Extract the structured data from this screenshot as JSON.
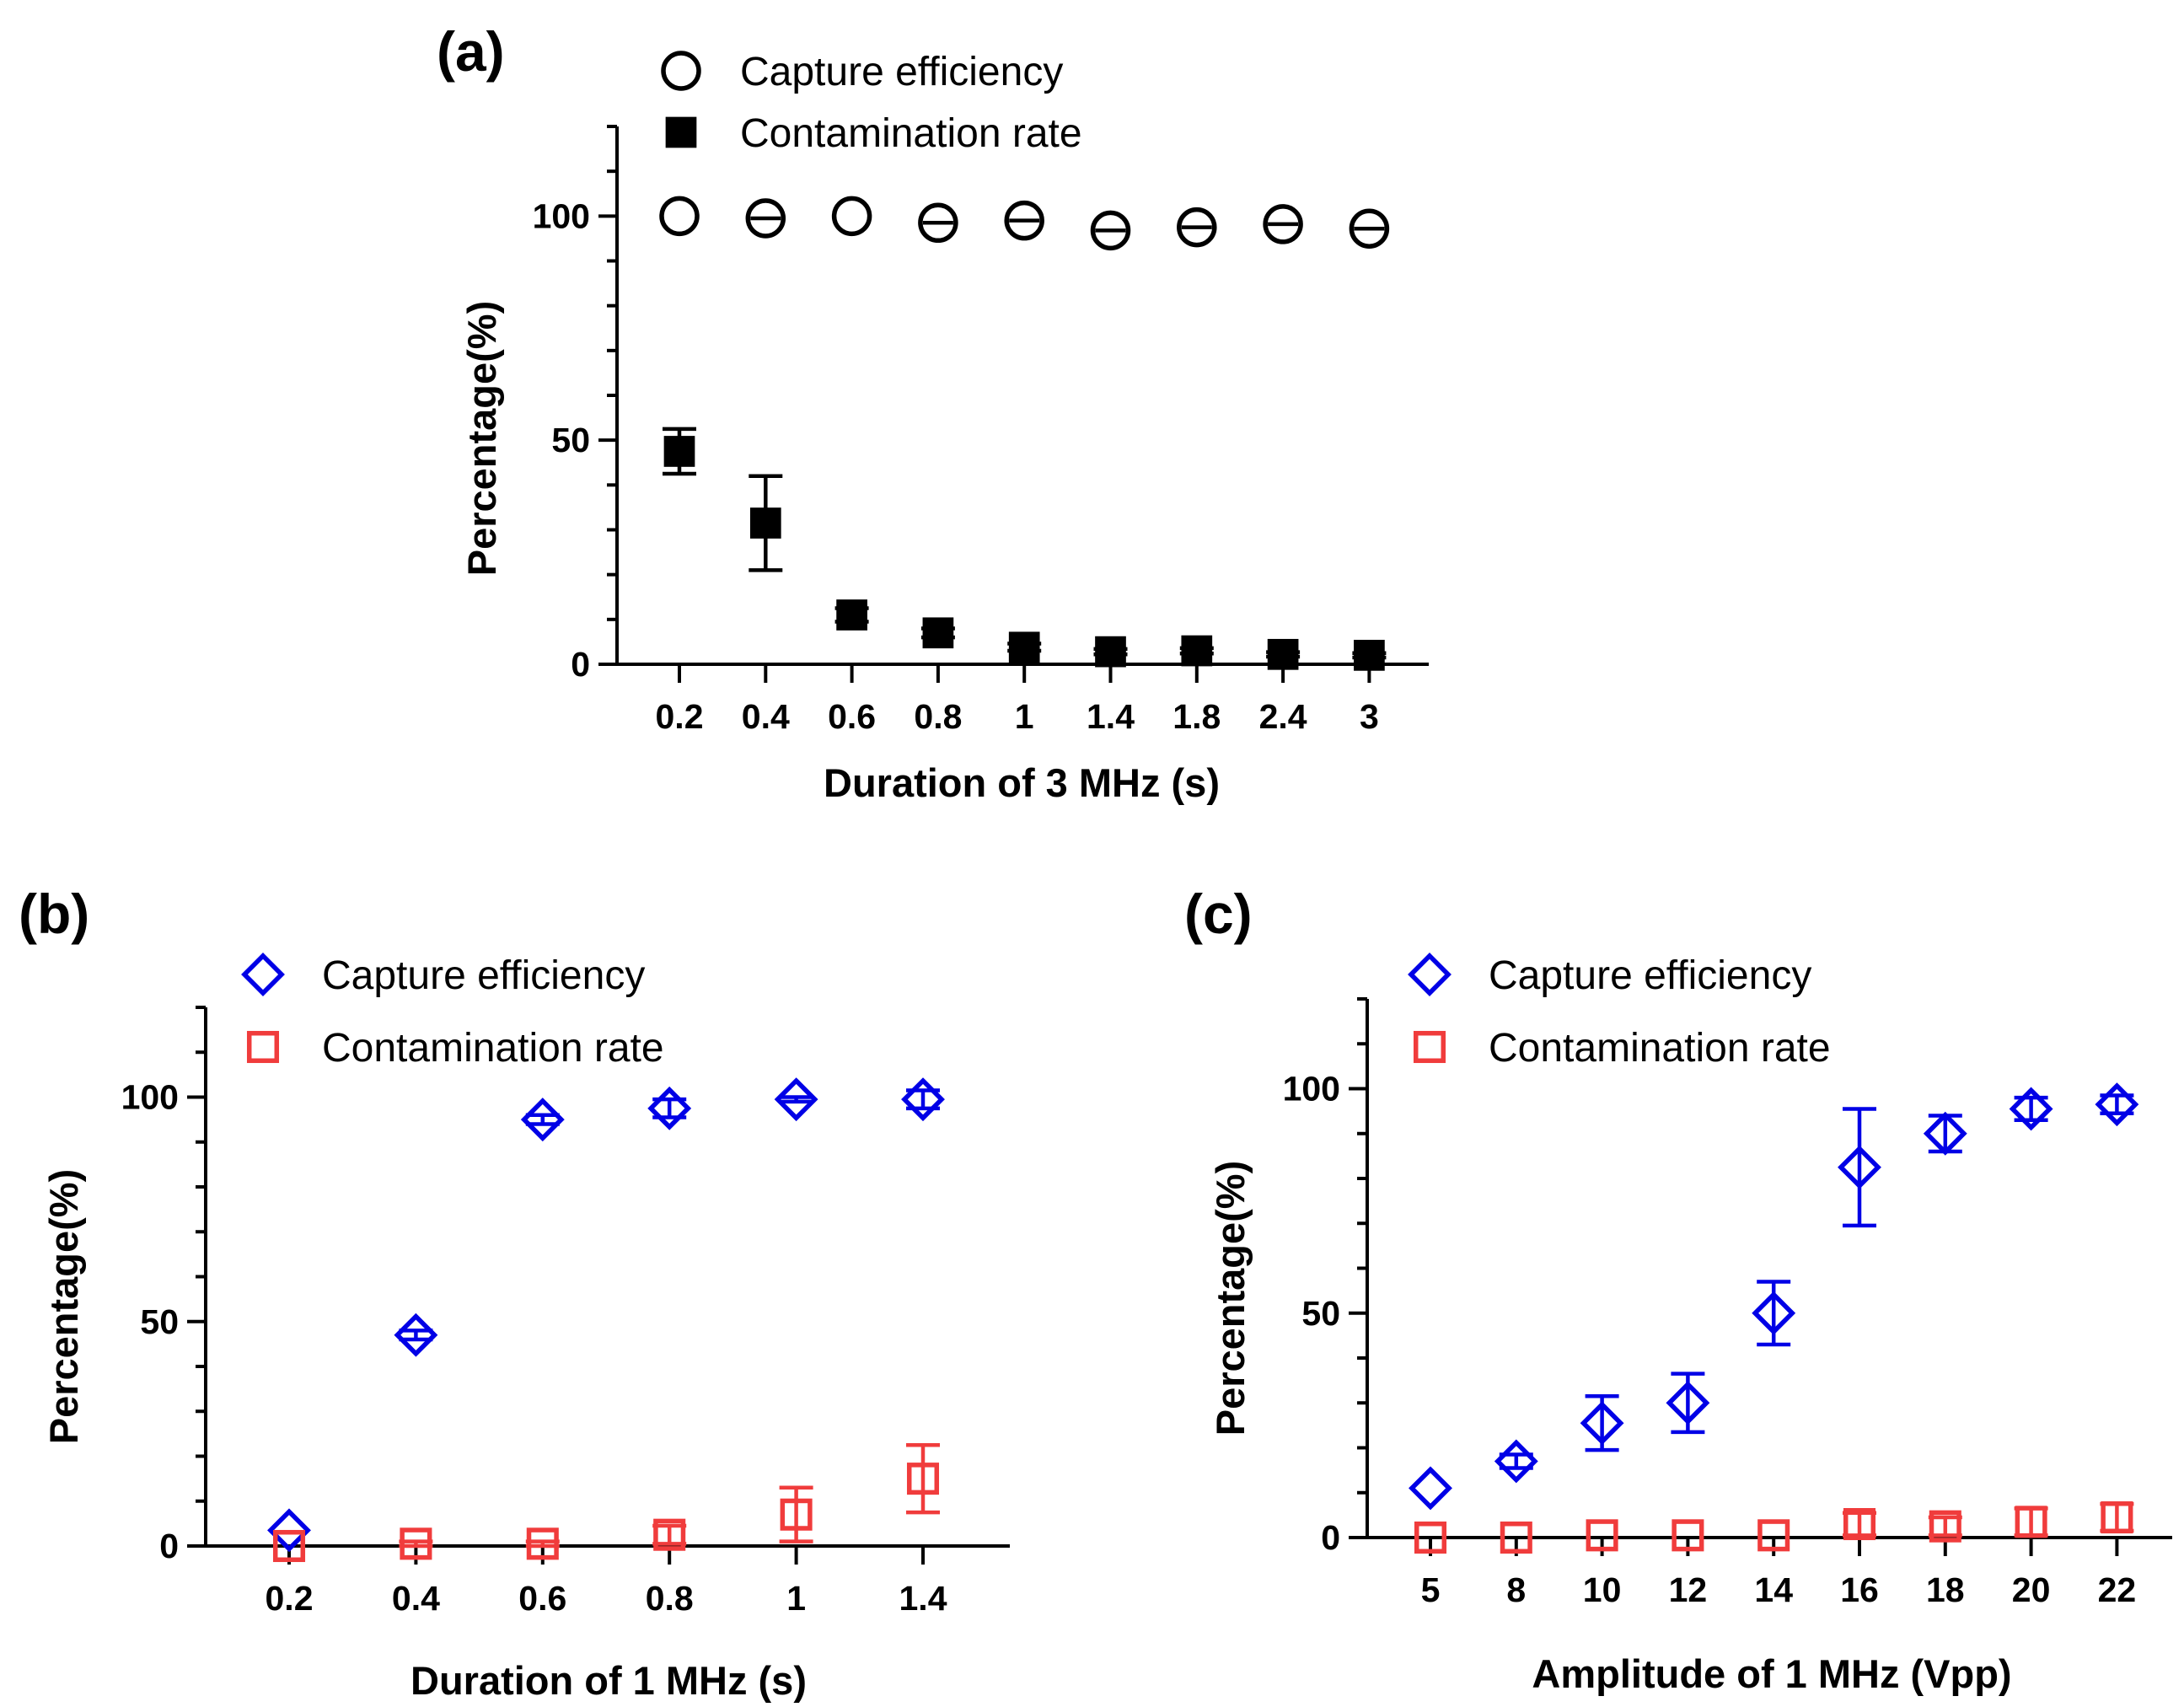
{
  "chart_data": [
    {
      "id": "a",
      "type": "scatter",
      "panel_label": "(a)",
      "title": "",
      "xlabel": "Duration of 3 MHz (s)",
      "ylabel": "Percentage(%)",
      "categories": [
        "0.2",
        "0.4",
        "0.6",
        "0.8",
        "1",
        "1.4",
        "1.8",
        "2.4",
        "3"
      ],
      "ylim": [
        0,
        120
      ],
      "yticks": [
        0,
        50,
        100
      ],
      "grid": false,
      "legend_position": "top-left",
      "colors": {
        "capture": "#000000",
        "contamination": "#000000"
      },
      "series": [
        {
          "name": "Capture efficiency",
          "marker": "circle-open",
          "values": [
            100,
            99.5,
            100,
            98.5,
            99,
            96.8,
            97.5,
            98.2,
            97.2
          ],
          "error": [
            0,
            0.5,
            0,
            1,
            1,
            1.5,
            1,
            1,
            1.2
          ]
        },
        {
          "name": "Contamination rate",
          "marker": "square-filled",
          "values": [
            47.5,
            31.5,
            11,
            7,
            3.8,
            2.8,
            3,
            2.2,
            2
          ],
          "error": [
            5,
            10.5,
            1.5,
            1,
            0.8,
            0.6,
            0.6,
            0.5,
            0.5
          ]
        }
      ]
    },
    {
      "id": "b",
      "type": "scatter",
      "panel_label": "(b)",
      "title": "",
      "xlabel": "Duration of 1 MHz (s)",
      "ylabel": "Percentage(%)",
      "categories": [
        "0.2",
        "0.4",
        "0.6",
        "0.8",
        "1",
        "1.4"
      ],
      "ylim": [
        0,
        120
      ],
      "yticks": [
        0,
        50,
        100
      ],
      "grid": false,
      "legend_position": "top-left",
      "colors": {
        "capture": "#0000e6",
        "contamination": "#f03c3c"
      },
      "series": [
        {
          "name": "Capture efficiency",
          "marker": "diamond-open",
          "values": [
            3.5,
            47,
            95,
            97.5,
            99.5,
            99.5
          ],
          "error": [
            0,
            1,
            1,
            2,
            0.5,
            2
          ]
        },
        {
          "name": "Contamination rate",
          "marker": "square-open",
          "values": [
            0,
            0.5,
            0.5,
            2.5,
            7,
            15
          ],
          "error": [
            0,
            0.5,
            0.5,
            2,
            6,
            7.5
          ]
        }
      ]
    },
    {
      "id": "c",
      "type": "scatter",
      "panel_label": "(c)",
      "title": "",
      "xlabel": "Amplitude of 1 MHz (Vpp)",
      "ylabel": "Percentage(%)",
      "categories": [
        "5",
        "8",
        "10",
        "12",
        "14",
        "16",
        "18",
        "20",
        "22"
      ],
      "ylim": [
        0,
        120
      ],
      "yticks": [
        0,
        50,
        100
      ],
      "grid": false,
      "legend_position": "top-left",
      "colors": {
        "capture": "#0000e6",
        "contamination": "#f03c3c"
      },
      "series": [
        {
          "name": "Capture efficiency",
          "marker": "diamond-open",
          "values": [
            11,
            17,
            25.5,
            30,
            50,
            82.5,
            90,
            95.5,
            96.5
          ],
          "error": [
            0,
            1.5,
            6,
            6.5,
            7,
            13,
            4,
            2.5,
            2
          ]
        },
        {
          "name": "Contamination rate",
          "marker": "square-open",
          "values": [
            0,
            0,
            0.5,
            0.5,
            0.5,
            3,
            2.5,
            3.5,
            4.5
          ],
          "error": [
            0,
            0,
            0,
            0,
            0,
            2.5,
            2,
            3,
            3
          ]
        }
      ]
    }
  ]
}
